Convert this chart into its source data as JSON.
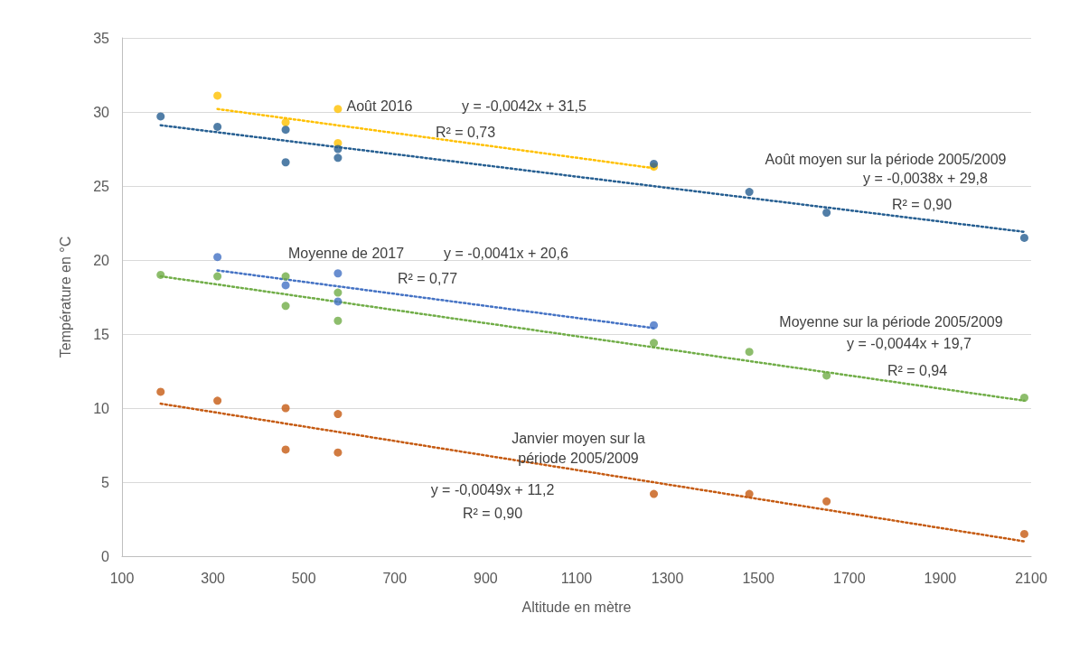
{
  "chart_data": {
    "type": "scatter",
    "xlabel": "Altitude en mètre",
    "ylabel": "Température en °C",
    "xlim": [
      100,
      2100
    ],
    "xticks": [
      100,
      300,
      500,
      700,
      900,
      1100,
      1300,
      1500,
      1700,
      1900,
      2100
    ],
    "ylim": [
      0,
      35
    ],
    "yticks": [
      0,
      5,
      10,
      15,
      20,
      25,
      30,
      35
    ],
    "grid": "y",
    "marker": "circle",
    "series": [
      {
        "color": "#ffc000",
        "x": [
          310,
          460,
          575,
          575,
          1270
        ],
        "values": [
          31.1,
          29.3,
          30.2,
          27.9,
          26.3
        ]
      },
      {
        "color": "#255e91",
        "x": [
          185,
          310,
          460,
          460,
          575,
          575,
          1270,
          1480,
          1650,
          2085
        ],
        "values": [
          29.7,
          29.0,
          28.8,
          26.6,
          27.5,
          26.9,
          26.5,
          24.6,
          23.2,
          21.5
        ]
      },
      {
        "color": "#4472c4",
        "x": [
          310,
          460,
          575,
          575,
          1270
        ],
        "values": [
          20.2,
          18.3,
          19.1,
          17.2,
          15.6
        ]
      },
      {
        "color": "#70ad47",
        "x": [
          185,
          310,
          460,
          460,
          575,
          575,
          1270,
          1480,
          1650,
          2085
        ],
        "values": [
          19.0,
          18.9,
          18.9,
          16.9,
          17.8,
          15.9,
          14.4,
          13.8,
          12.2,
          10.7
        ]
      },
      {
        "color": "#c55a11",
        "x": [
          185,
          310,
          460,
          460,
          575,
          575,
          1270,
          1480,
          1650,
          2085
        ],
        "values": [
          11.1,
          10.5,
          10.0,
          7.2,
          9.6,
          7.0,
          4.2,
          4.2,
          3.7,
          1.5
        ]
      },
      {
        "type": "line",
        "color": "#ffc000",
        "line_style": "dotted",
        "marker": "none",
        "x": [
          310,
          1270
        ],
        "values": [
          30.2,
          26.2
        ]
      },
      {
        "type": "line",
        "color": "#255e91",
        "line_style": "dotted",
        "marker": "none",
        "x": [
          185,
          2085
        ],
        "values": [
          29.1,
          21.9
        ]
      },
      {
        "type": "line",
        "color": "#4472c4",
        "line_style": "dotted",
        "marker": "none",
        "x": [
          310,
          1270
        ],
        "values": [
          19.3,
          15.4
        ]
      },
      {
        "type": "line",
        "color": "#70ad47",
        "line_style": "dotted",
        "marker": "none",
        "x": [
          185,
          2085
        ],
        "values": [
          18.9,
          10.5
        ]
      },
      {
        "type": "line",
        "color": "#c55a11",
        "line_style": "dotted",
        "marker": "none",
        "x": [
          185,
          2085
        ],
        "values": [
          10.3,
          1.0
        ]
      }
    ],
    "annotations": [
      "Août 2016",
      "y = -0,0042x + 31,5",
      "R² = 0,73",
      "Août moyen sur la période 2005/2009",
      "y = -0,0038x + 29,8",
      "R² = 0,90",
      "Moyenne de 2017",
      "y = -0,0041x + 20,6",
      "R² = 0,77",
      "Moyenne sur la période 2005/2009",
      "y = -0,0044x + 19,7",
      "R² = 0,94",
      "Janvier moyen sur la\npériode 2005/2009",
      "y = -0,0049x + 11,2",
      "R² = 0,90"
    ]
  }
}
